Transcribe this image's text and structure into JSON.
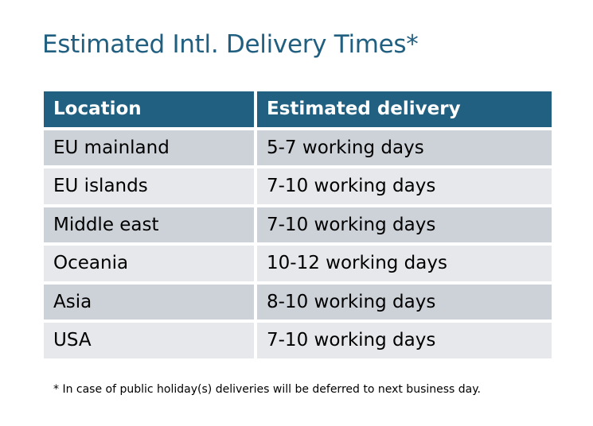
{
  "title": "Estimated Intl. Delivery Times*",
  "table": {
    "headers": [
      "Location",
      "Estimated delivery"
    ],
    "rows": [
      [
        "EU mainland",
        "5-7 working days"
      ],
      [
        "EU islands",
        "7-10 working days"
      ],
      [
        "Middle east",
        "7-10 working days"
      ],
      [
        "Oceania",
        "10-12 working days"
      ],
      [
        "Asia",
        "8-10 working days"
      ],
      [
        "USA",
        "7-10 working days"
      ]
    ]
  },
  "footnote": "* In case of public holiday(s) deliveries will be deferred to next business day.",
  "colors": {
    "header_bg": "#216080",
    "title": "#215f80",
    "row_dark": "#cdd2d9",
    "row_light": "#e6e8eb"
  }
}
